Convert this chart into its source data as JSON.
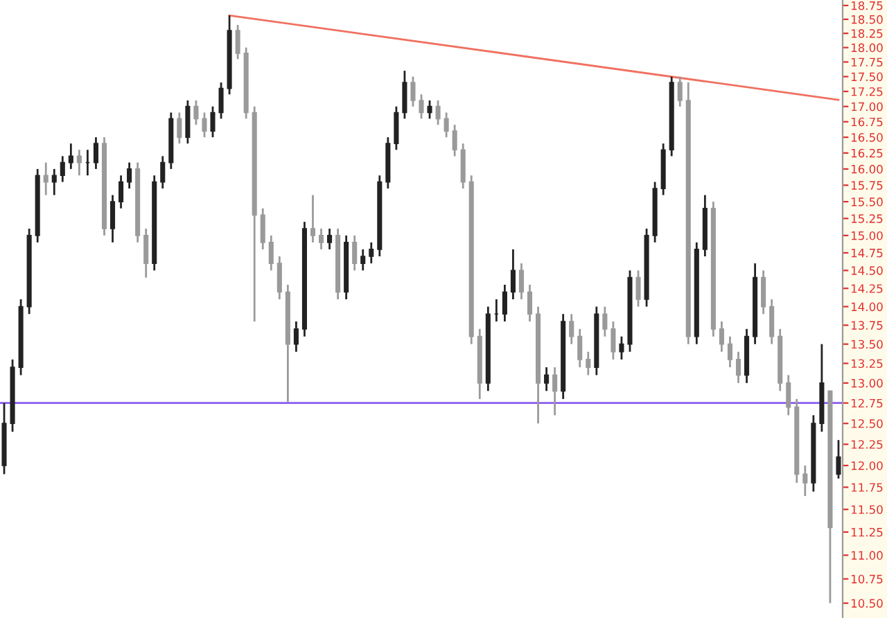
{
  "chart_data": {
    "type": "candlestick",
    "log": true,
    "colors": [
      "#222222",
      "#222222",
      "#222222",
      "#222222",
      "#222222",
      "#9a9a9a",
      "#222222",
      "#222222",
      "#222222",
      "#9a9a9a",
      "#222222",
      "#222222",
      "#9a9a9a",
      "#222222",
      "#222222",
      "#222222",
      "#9a9a9a",
      "#9a9a9a",
      "#222222",
      "#222222",
      "#222222",
      "#9a9a9a",
      "#222222",
      "#9a9a9a",
      "#9a9a9a",
      "#222222",
      "#222222",
      "#222222",
      "#9a9a9a",
      "#9a9a9a",
      "#9a9a9a",
      "#9a9a9a",
      "#9a9a9a",
      "#9a9a9a",
      "#9a9a9a",
      "#222222",
      "#222222",
      "#9a9a9a",
      "#9a9a9a",
      "#222222",
      "#9a9a9a",
      "#222222",
      "#9a9a9a",
      "#222222",
      "#222222",
      "#222222",
      "#222222",
      "#222222",
      "#222222",
      "#9a9a9a",
      "#9a9a9a",
      "#222222",
      "#9a9a9a",
      "#9a9a9a",
      "#9a9a9a",
      "#9a9a9a",
      "#9a9a9a",
      "#9a9a9a",
      "#222222",
      "#222222",
      "#222222",
      "#222222",
      "#9a9a9a",
      "#9a9a9a",
      "#9a9a9a",
      "#222222",
      "#9a9a9a",
      "#222222",
      "#9a9a9a",
      "#9a9a9a",
      "#9a9a9a",
      "#222222",
      "#9a9a9a",
      "#9a9a9a",
      "#222222",
      "#222222",
      "#9a9a9a",
      "#222222",
      "#222222",
      "#222222",
      "#222222",
      "#9a9a9a",
      "#9a9a9a",
      "#222222",
      "#222222",
      "#9a9a9a",
      "#9a9a9a",
      "#9a9a9a",
      "#9a9a9a",
      "#222222",
      "#222222",
      "#9a9a9a",
      "#9a9a9a",
      "#9a9a9a",
      "#9a9a9a",
      "#9a9a9a",
      "#9a9a9a",
      "#222222",
      "#222222",
      "#9a9a9a",
      "#222222"
    ],
    "grid": false,
    "tick_labels": "y",
    "categories": [
      null,
      null,
      null,
      null,
      null,
      null,
      null,
      null,
      null,
      null,
      null,
      null,
      null,
      null,
      null,
      null,
      null,
      null,
      null,
      null,
      null,
      null,
      null,
      null,
      null,
      null,
      null,
      null,
      null,
      null,
      null,
      null,
      null,
      null,
      null,
      null,
      null,
      null,
      null,
      null,
      null,
      null,
      null,
      null,
      null,
      null,
      null,
      null,
      null,
      null,
      null,
      null,
      null,
      null,
      null,
      null,
      null,
      null,
      null,
      null,
      null,
      null,
      null,
      null,
      null,
      null,
      null,
      null,
      null,
      null,
      null,
      null,
      null,
      null,
      null,
      null,
      null,
      null,
      null,
      null,
      null,
      null,
      null,
      null,
      null,
      null,
      null,
      null,
      null,
      null,
      null,
      null,
      null,
      null,
      null,
      null,
      null,
      null,
      null,
      null,
      null
    ],
    "ohlc": [
      [
        12.0,
        12.75,
        11.9,
        12.5
      ],
      [
        12.5,
        13.3,
        12.4,
        13.2
      ],
      [
        13.2,
        14.1,
        13.1,
        14.0
      ],
      [
        14.0,
        15.1,
        13.9,
        15.0
      ],
      [
        15.0,
        16.0,
        14.9,
        15.9
      ],
      [
        15.9,
        16.1,
        15.6,
        15.8
      ],
      [
        15.8,
        16.0,
        15.6,
        15.9
      ],
      [
        15.9,
        16.2,
        15.8,
        16.1
      ],
      [
        16.1,
        16.4,
        16.0,
        16.2
      ],
      [
        16.2,
        16.3,
        15.9,
        16.1
      ],
      [
        16.1,
        16.3,
        15.9,
        16.1
      ],
      [
        16.1,
        16.5,
        16.0,
        16.4
      ],
      [
        16.4,
        16.5,
        15.0,
        15.1
      ],
      [
        15.1,
        15.6,
        14.9,
        15.5
      ],
      [
        15.5,
        15.9,
        15.4,
        15.8
      ],
      [
        15.8,
        16.1,
        15.7,
        16.0
      ],
      [
        16.0,
        16.1,
        14.9,
        15.0
      ],
      [
        15.0,
        15.1,
        14.4,
        14.6
      ],
      [
        14.6,
        15.9,
        14.5,
        15.8
      ],
      [
        15.8,
        16.2,
        15.7,
        16.1
      ],
      [
        16.1,
        16.9,
        16.0,
        16.8
      ],
      [
        16.8,
        16.9,
        16.4,
        16.5
      ],
      [
        16.5,
        17.1,
        16.4,
        17.0
      ],
      [
        17.0,
        17.1,
        16.7,
        16.8
      ],
      [
        16.8,
        16.9,
        16.5,
        16.6
      ],
      [
        16.6,
        17.0,
        16.5,
        16.9
      ],
      [
        16.9,
        17.4,
        16.8,
        17.3
      ],
      [
        17.3,
        18.57,
        17.2,
        18.3
      ],
      [
        18.3,
        18.4,
        17.8,
        17.9
      ],
      [
        17.9,
        18.0,
        16.8,
        16.9
      ],
      [
        16.9,
        17.0,
        13.8,
        15.3
      ],
      [
        15.3,
        15.4,
        14.8,
        14.9
      ],
      [
        14.9,
        15.0,
        14.5,
        14.6
      ],
      [
        14.6,
        14.7,
        14.1,
        14.2
      ],
      [
        14.2,
        14.3,
        12.76,
        13.5
      ],
      [
        13.5,
        13.8,
        13.4,
        13.7
      ],
      [
        13.7,
        15.2,
        13.6,
        15.1
      ],
      [
        15.1,
        15.6,
        14.9,
        15.0
      ],
      [
        15.0,
        15.1,
        14.8,
        14.9
      ],
      [
        14.9,
        15.1,
        14.8,
        15.0
      ],
      [
        15.0,
        15.1,
        14.1,
        14.2
      ],
      [
        14.2,
        15.0,
        14.1,
        14.9
      ],
      [
        14.9,
        15.0,
        14.5,
        14.6
      ],
      [
        14.6,
        14.8,
        14.5,
        14.7
      ],
      [
        14.7,
        14.9,
        14.6,
        14.8
      ],
      [
        14.8,
        15.9,
        14.7,
        15.8
      ],
      [
        15.8,
        16.5,
        15.7,
        16.4
      ],
      [
        16.4,
        17.0,
        16.3,
        16.9
      ],
      [
        16.9,
        17.6,
        16.8,
        17.4
      ],
      [
        17.4,
        17.5,
        17.0,
        17.1
      ],
      [
        17.1,
        17.2,
        16.8,
        16.9
      ],
      [
        16.9,
        17.1,
        16.8,
        17.0
      ],
      [
        17.0,
        17.1,
        16.7,
        16.8
      ],
      [
        16.8,
        16.9,
        16.5,
        16.6
      ],
      [
        16.6,
        16.7,
        16.2,
        16.3
      ],
      [
        16.3,
        16.4,
        15.7,
        15.8
      ],
      [
        15.8,
        15.9,
        13.5,
        13.6
      ],
      [
        13.6,
        13.7,
        12.8,
        13.0
      ],
      [
        13.0,
        14.0,
        12.9,
        13.9
      ],
      [
        13.9,
        14.1,
        13.8,
        13.9
      ],
      [
        13.9,
        14.3,
        13.8,
        14.2
      ],
      [
        14.2,
        14.8,
        14.1,
        14.5
      ],
      [
        14.5,
        14.6,
        14.1,
        14.2
      ],
      [
        14.2,
        14.3,
        13.8,
        13.9
      ],
      [
        13.9,
        14.0,
        12.5,
        13.0
      ],
      [
        13.0,
        13.2,
        12.9,
        13.1
      ],
      [
        13.1,
        13.2,
        12.6,
        12.9
      ],
      [
        12.9,
        13.9,
        12.8,
        13.8
      ],
      [
        13.8,
        13.9,
        13.5,
        13.6
      ],
      [
        13.6,
        13.7,
        13.2,
        13.3
      ],
      [
        13.3,
        13.4,
        13.1,
        13.2
      ],
      [
        13.2,
        14.0,
        13.1,
        13.9
      ],
      [
        13.9,
        14.0,
        13.6,
        13.7
      ],
      [
        13.7,
        13.8,
        13.3,
        13.4
      ],
      [
        13.4,
        13.6,
        13.3,
        13.5
      ],
      [
        13.5,
        14.5,
        13.4,
        14.4
      ],
      [
        14.4,
        14.5,
        14.0,
        14.1
      ],
      [
        14.1,
        15.1,
        14.0,
        15.0
      ],
      [
        15.0,
        15.8,
        14.9,
        15.7
      ],
      [
        15.7,
        16.4,
        15.6,
        16.3
      ],
      [
        16.3,
        17.5,
        16.2,
        17.4
      ],
      [
        17.4,
        17.5,
        17.0,
        17.1
      ],
      [
        17.1,
        17.4,
        13.5,
        13.6
      ],
      [
        13.6,
        14.9,
        13.5,
        14.8
      ],
      [
        14.8,
        15.6,
        14.7,
        15.4
      ],
      [
        15.4,
        15.5,
        13.6,
        13.7
      ],
      [
        13.7,
        13.8,
        13.4,
        13.5
      ],
      [
        13.5,
        13.6,
        13.2,
        13.3
      ],
      [
        13.3,
        13.4,
        13.0,
        13.1
      ],
      [
        13.1,
        13.7,
        13.0,
        13.6
      ],
      [
        13.6,
        14.6,
        13.5,
        14.4
      ],
      [
        14.4,
        14.5,
        13.9,
        14.0
      ],
      [
        14.0,
        14.1,
        13.5,
        13.6
      ],
      [
        13.6,
        13.7,
        12.9,
        13.0
      ],
      [
        13.0,
        13.1,
        12.6,
        12.7
      ],
      [
        12.7,
        12.8,
        11.8,
        11.9
      ],
      [
        11.9,
        12.0,
        11.65,
        11.8
      ],
      [
        11.8,
        12.6,
        11.7,
        12.5
      ],
      [
        12.5,
        13.5,
        12.4,
        13.0
      ],
      [
        12.9,
        12.9,
        10.5,
        11.3
      ],
      [
        11.9,
        12.3,
        11.85,
        12.1
      ]
    ],
    "series": [
      {
        "type": "line",
        "color": "#f07060",
        "values": [
          null,
          null,
          null,
          null,
          null,
          null,
          null,
          null,
          null,
          null,
          null,
          null,
          null,
          null,
          null,
          null,
          null,
          null,
          null,
          null,
          null,
          null,
          null,
          null,
          null,
          null,
          null,
          18.57,
          null,
          null,
          null,
          null,
          null,
          null,
          null,
          null,
          null,
          null,
          null,
          null,
          null,
          null,
          null,
          null,
          null,
          null,
          null,
          null,
          null,
          null,
          null,
          null,
          null,
          null,
          null,
          null,
          null,
          null,
          null,
          null,
          null,
          null,
          null,
          null,
          null,
          null,
          null,
          null,
          null,
          null,
          null,
          null,
          null,
          null,
          null,
          null,
          null,
          null,
          null,
          null,
          null,
          null,
          null,
          null,
          null,
          null,
          null,
          null,
          null,
          null,
          null,
          null,
          null,
          null,
          null,
          null,
          null,
          null,
          null,
          null,
          17.11
        ]
      }
    ],
    "ref_lines": [
      {
        "axis": "y",
        "value": 12.75,
        "color": "#8a5cf0"
      }
    ],
    "ylim": [
      10.35,
      18.85
    ],
    "yticks": [
      {
        "value": 10.5,
        "label": "10.50"
      },
      {
        "value": 10.75,
        "label": "10.75"
      },
      {
        "value": 11.0,
        "label": "11.00"
      },
      {
        "value": 11.25,
        "label": "11.25"
      },
      {
        "value": 11.5,
        "label": "11.50"
      },
      {
        "value": 11.75,
        "label": "11.75"
      },
      {
        "value": 12.0,
        "label": "12.00"
      },
      {
        "value": 12.25,
        "label": "12.25"
      },
      {
        "value": 12.5,
        "label": "12.50"
      },
      {
        "value": 12.75,
        "label": "12.75"
      },
      {
        "value": 13.0,
        "label": "13.00"
      },
      {
        "value": 13.25,
        "label": "13.25"
      },
      {
        "value": 13.5,
        "label": "13.50"
      },
      {
        "value": 13.75,
        "label": "13.75"
      },
      {
        "value": 14.0,
        "label": "14.00"
      },
      {
        "value": 14.25,
        "label": "14.25"
      },
      {
        "value": 14.5,
        "label": "14.50"
      },
      {
        "value": 14.75,
        "label": "14.75"
      },
      {
        "value": 15.0,
        "label": "15.00"
      },
      {
        "value": 15.25,
        "label": "15.25"
      },
      {
        "value": 15.5,
        "label": "15.50"
      },
      {
        "value": 15.75,
        "label": "15.75"
      },
      {
        "value": 16.0,
        "label": "16.00"
      },
      {
        "value": 16.25,
        "label": "16.25"
      },
      {
        "value": 16.5,
        "label": "16.50"
      },
      {
        "value": 16.75,
        "label": "16.75"
      },
      {
        "value": 17.0,
        "label": "17.00"
      },
      {
        "value": 17.25,
        "label": "17.25"
      },
      {
        "value": 17.5,
        "label": "17.50"
      },
      {
        "value": 17.75,
        "label": "17.75"
      },
      {
        "value": 18.0,
        "label": "18.00"
      },
      {
        "value": 18.25,
        "label": "18.25"
      },
      {
        "value": 18.5,
        "label": "18.50"
      },
      {
        "value": 18.75,
        "label": "18.75"
      }
    ]
  }
}
